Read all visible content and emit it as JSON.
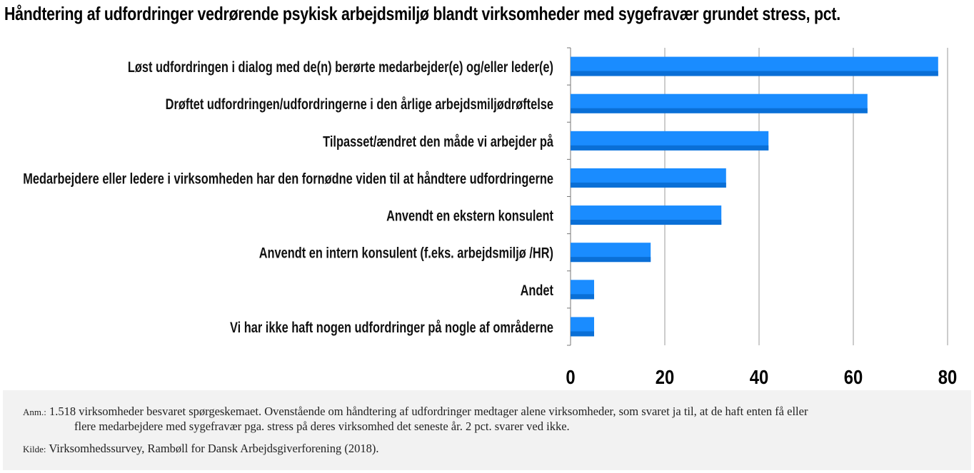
{
  "title": "Håndtering af udfordringer vedrørende psykisk arbejdsmiljø blandt virksomheder med sygefravær grundet stress, pct.",
  "chart_data": {
    "type": "bar",
    "orientation": "horizontal",
    "title": "Håndtering af udfordringer vedrørende psykisk arbejdsmiljø blandt virksomheder med sygefravær grundet stress, pct.",
    "categories": [
      "Løst udfordringen i dialog med de(n) berørte medarbejder(e) og/eller leder(e)",
      "Drøftet udfordringen/udfordringerne i den årlige arbejdsmiljødrøftelse",
      "Tilpasset/ændret den måde vi arbejder på",
      "Medarbejdere eller ledere i virksomheden har den fornødne viden til at håndtere udfordringerne",
      "Anvendt en ekstern konsulent",
      "Anvendt en intern konsulent (f.eks. arbejdsmiljø /HR)",
      "Andet",
      "Vi har ikke haft nogen udfordringer på nogle af områderne"
    ],
    "values": [
      78,
      63,
      42,
      33,
      32,
      17,
      5,
      5
    ],
    "xlim": [
      0,
      80
    ],
    "xticks": [
      "0",
      "20",
      "40",
      "60",
      "80"
    ],
    "grid": true,
    "legend": "none",
    "bar_color": "#1a8cff",
    "bar_shadow_color": "#0a6fd6"
  },
  "notes": {
    "anm_label": "Anm.:",
    "anm_text_line1": "1.518 virksomheder besvaret spørgeskemaet. Ovenstående om håndtering af udfordringer medtager alene virksomheder, som svaret ja til, at de haft enten få eller",
    "anm_text_line2": "flere medarbejdere med sygefravær pga. stress på deres virksomhed det seneste år. 2 pct. svarer ved ikke.",
    "kilde_label": "Kilde:",
    "kilde_text": "Virksomhedssurvey, Rambøll for Dansk Arbejdsgiverforening (2018)."
  }
}
